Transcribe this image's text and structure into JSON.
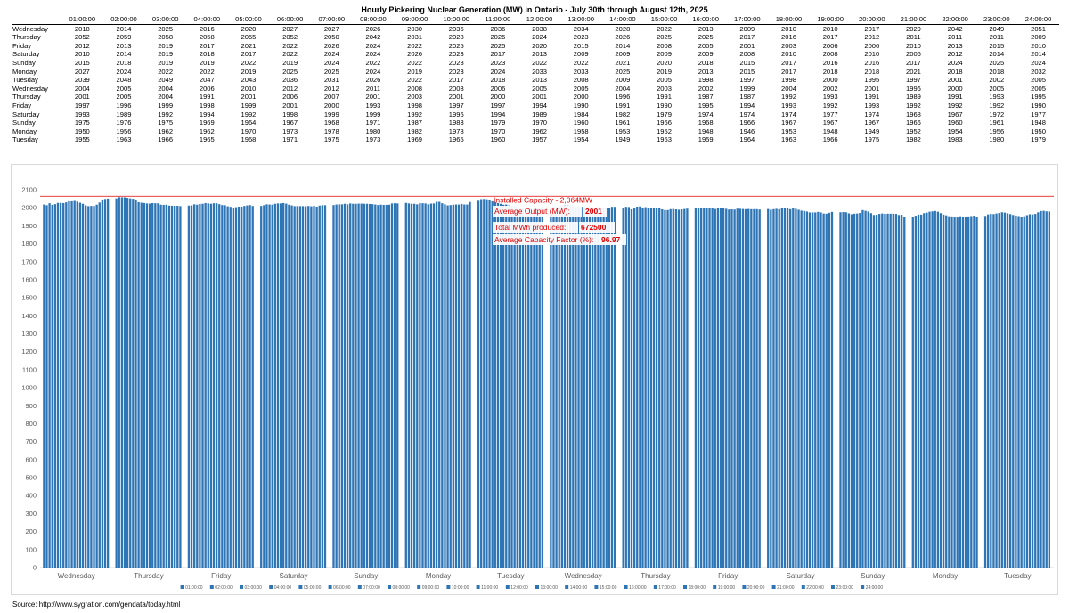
{
  "title": "Hourly Pickering Nuclear Generation (MW) in Ontario - July 30th through August 12th, 2025",
  "table": {
    "headers": [
      "01:00:00",
      "02:00:00",
      "03:00:00",
      "04:00:00",
      "05:00:00",
      "06:00:00",
      "07:00:00",
      "08:00:00",
      "09:00:00",
      "10:00:00",
      "11:00:00",
      "12:00:00",
      "13:00:00",
      "14:00:00",
      "15:00:00",
      "16:00:00",
      "17:00:00",
      "18:00:00",
      "19:00:00",
      "20:00:00",
      "21:00:00",
      "22:00:00",
      "23:00:00",
      "24:00:00"
    ],
    "rows": [
      {
        "day": "Wednesday",
        "values": [
          "2018",
          "2014",
          "2025",
          "2016",
          "2020",
          "2027",
          "2027",
          "2026",
          "2030",
          "2036",
          "2036",
          "2038",
          "2034",
          "2028",
          "2022",
          "2013",
          "2009",
          "2010",
          "2010",
          "2017",
          "2029",
          "2042",
          "2049",
          "2051"
        ]
      },
      {
        "day": "Thursday",
        "values": [
          "2052",
          "2059",
          "2058",
          "2058",
          "2055",
          "2052",
          "2050",
          "2042",
          "2031",
          "2028",
          "2026",
          "2024",
          "2023",
          "2026",
          "2025",
          "2025",
          "2017",
          "2016",
          "2017",
          "2012",
          "2011",
          "2011",
          "2011",
          "2009"
        ]
      },
      {
        "day": "Friday",
        "values": [
          "2012",
          "2013",
          "2019",
          "2017",
          "2021",
          "2022",
          "2026",
          "2024",
          "2022",
          "2025",
          "2025",
          "2020",
          "2015",
          "2014",
          "2008",
          "2005",
          "2001",
          "2003",
          "2006",
          "2006",
          "2010",
          "2013",
          "2015",
          "2010"
        ]
      },
      {
        "day": "Saturday",
        "values": [
          "2010",
          "2014",
          "2019",
          "2018",
          "2017",
          "2022",
          "2024",
          "2024",
          "2026",
          "2023",
          "2017",
          "2013",
          "2009",
          "2009",
          "2009",
          "2009",
          "2008",
          "2010",
          "2008",
          "2010",
          "2006",
          "2012",
          "2014",
          "2014"
        ]
      },
      {
        "day": "Sunday",
        "values": [
          "2015",
          "2018",
          "2019",
          "2019",
          "2022",
          "2019",
          "2024",
          "2022",
          "2022",
          "2023",
          "2023",
          "2022",
          "2022",
          "2021",
          "2020",
          "2018",
          "2015",
          "2017",
          "2016",
          "2016",
          "2017",
          "2024",
          "2025",
          "2024"
        ]
      },
      {
        "day": "Monday",
        "values": [
          "2027",
          "2024",
          "2022",
          "2022",
          "2019",
          "2025",
          "2025",
          "2024",
          "2019",
          "2023",
          "2024",
          "2033",
          "2033",
          "2025",
          "2019",
          "2013",
          "2015",
          "2017",
          "2018",
          "2018",
          "2021",
          "2018",
          "2018",
          "2032"
        ]
      },
      {
        "day": "Tuesday",
        "values": [
          "2039",
          "2048",
          "2049",
          "2047",
          "2043",
          "2036",
          "2031",
          "2026",
          "2022",
          "2017",
          "2018",
          "2013",
          "2008",
          "2009",
          "2005",
          "1998",
          "1997",
          "1998",
          "2000",
          "1995",
          "1997",
          "2001",
          "2002",
          "2005"
        ]
      },
      {
        "day": "Wednesday",
        "values": [
          "2004",
          "2005",
          "2004",
          "2006",
          "2010",
          "2012",
          "2012",
          "2011",
          "2008",
          "2003",
          "2006",
          "2005",
          "2005",
          "2004",
          "2003",
          "2002",
          "1999",
          "2004",
          "2002",
          "2001",
          "1996",
          "2000",
          "2005",
          "2005"
        ]
      },
      {
        "day": "Thursday",
        "values": [
          "2001",
          "2005",
          "2004",
          "1991",
          "2001",
          "2006",
          "2007",
          "2001",
          "2003",
          "2001",
          "2000",
          "2001",
          "2000",
          "1996",
          "1991",
          "1987",
          "1987",
          "1992",
          "1993",
          "1991",
          "1989",
          "1991",
          "1993",
          "1995"
        ]
      },
      {
        "day": "Friday",
        "values": [
          "1997",
          "1996",
          "1999",
          "1998",
          "1999",
          "2001",
          "2000",
          "1993",
          "1998",
          "1997",
          "1997",
          "1994",
          "1990",
          "1991",
          "1990",
          "1995",
          "1994",
          "1993",
          "1992",
          "1993",
          "1992",
          "1992",
          "1992",
          "1990"
        ]
      },
      {
        "day": "Saturday",
        "values": [
          "1993",
          "1989",
          "1992",
          "1994",
          "1992",
          "1998",
          "1999",
          "1999",
          "1992",
          "1996",
          "1994",
          "1989",
          "1984",
          "1982",
          "1979",
          "1974",
          "1974",
          "1974",
          "1977",
          "1974",
          "1968",
          "1967",
          "1972",
          "1977"
        ]
      },
      {
        "day": "Sunday",
        "values": [
          "1975",
          "1976",
          "1975",
          "1969",
          "1964",
          "1967",
          "1968",
          "1971",
          "1987",
          "1983",
          "1979",
          "1970",
          "1960",
          "1961",
          "1966",
          "1968",
          "1966",
          "1967",
          "1967",
          "1967",
          "1966",
          "1960",
          "1961",
          "1948"
        ]
      },
      {
        "day": "Monday",
        "values": [
          "1950",
          "1956",
          "1962",
          "1962",
          "1970",
          "1973",
          "1978",
          "1980",
          "1982",
          "1978",
          "1970",
          "1962",
          "1958",
          "1953",
          "1952",
          "1948",
          "1946",
          "1953",
          "1948",
          "1949",
          "1952",
          "1954",
          "1956",
          "1950"
        ]
      },
      {
        "day": "Tuesday",
        "values": [
          "1955",
          "1963",
          "1966",
          "1965",
          "1968",
          "1971",
          "1975",
          "1973",
          "1969",
          "1965",
          "1960",
          "1957",
          "1954",
          "1949",
          "1953",
          "1959",
          "1964",
          "1963",
          "1966",
          "1975",
          "1982",
          "1983",
          "1980",
          "1979"
        ]
      }
    ]
  },
  "chart_data": {
    "type": "bar",
    "categories": [
      "Wednesday",
      "Thursday",
      "Friday",
      "Saturday",
      "Sunday",
      "Monday",
      "Tuesday",
      "Wednesday",
      "Thursday",
      "Friday",
      "Saturday",
      "Sunday",
      "Monday",
      "Tuesday"
    ],
    "series_names": [
      "01:00:00",
      "02:00:00",
      "03:00:00",
      "04:00:00",
      "05:00:00",
      "06:00:00",
      "07:00:00",
      "08:00:00",
      "09:00:00",
      "10:00:00",
      "11:00:00",
      "12:00:00",
      "13:00:00",
      "14:00:00",
      "15:00:00",
      "16:00:00",
      "17:00:00",
      "18:00:00",
      "19:00:00",
      "20:00:00",
      "21:00:00",
      "22:00:00",
      "23:00:00",
      "24:00:00"
    ],
    "values_source": "table.rows",
    "ylim": [
      0,
      2100
    ],
    "y_ticks": [
      0,
      100,
      200,
      300,
      400,
      500,
      600,
      700,
      800,
      900,
      1000,
      1100,
      1200,
      1300,
      1400,
      1500,
      1600,
      1700,
      1800,
      1900,
      2000,
      2100
    ],
    "reference_line": {
      "value": 2064,
      "label": "Installed Capacity - 2,064MW",
      "color": "#e00000"
    },
    "bar_color": "#2e75b6",
    "legend_position": "bottom",
    "grid": false,
    "annotations": [
      {
        "label": "Average Output (MW):",
        "value": "2001"
      },
      {
        "label": "Total MWh produced:",
        "value": "672500"
      },
      {
        "label": "Average Capacity Factor (%):",
        "value": "96.97"
      }
    ]
  },
  "source": "Source: http://www.sygration.com/gendata/today.html"
}
